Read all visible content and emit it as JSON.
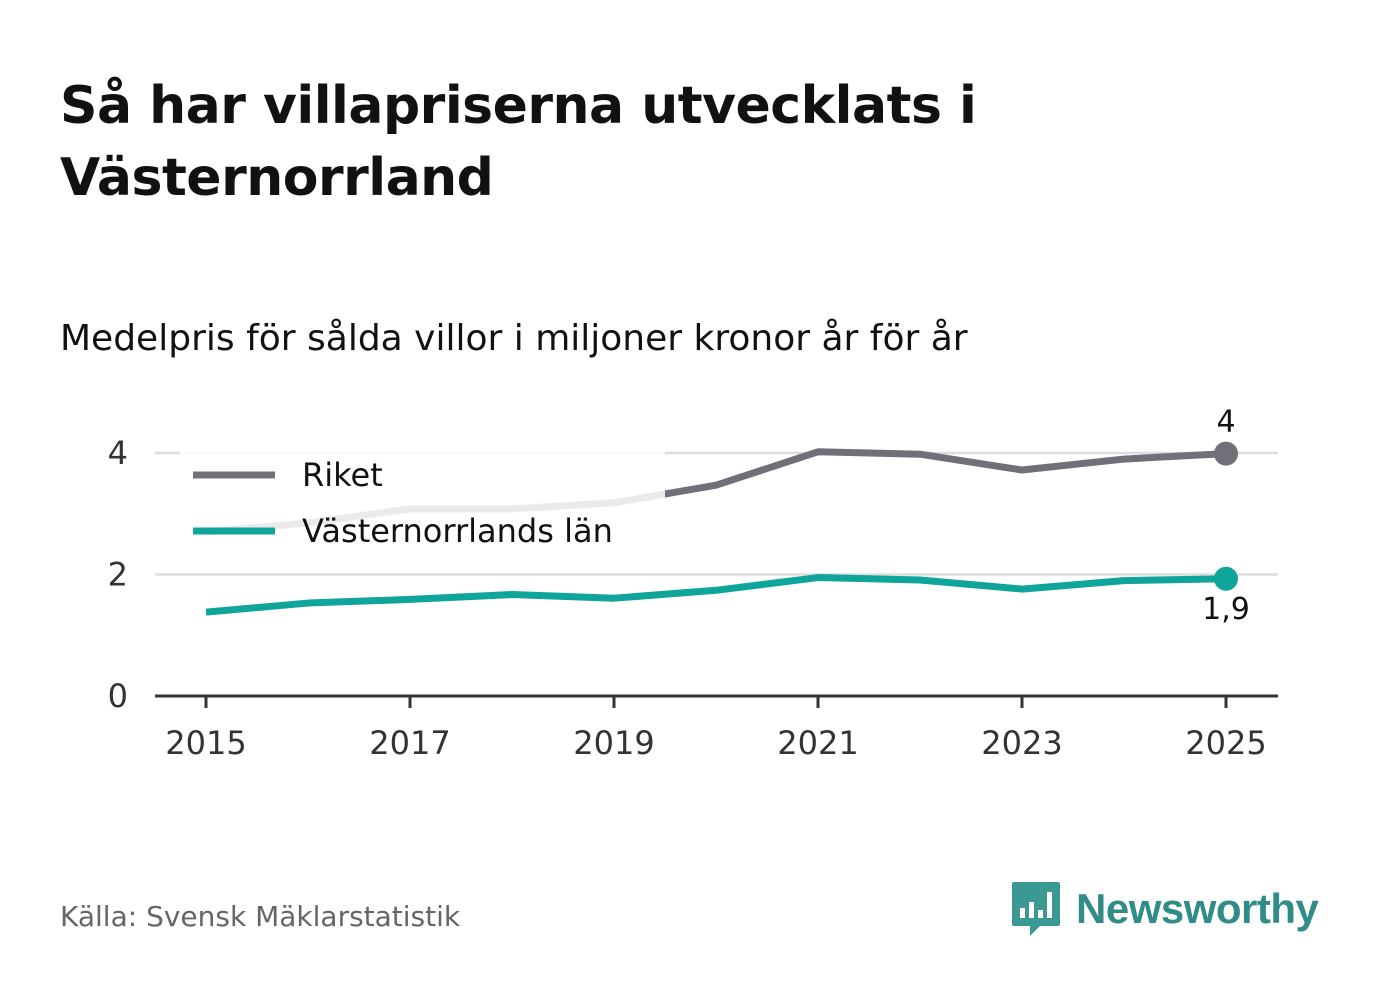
{
  "header": {
    "title": "Så har villapriserna utvecklats i Västernorrland",
    "subtitle": "Medelpris för sålda villor i miljoner kronor år för år"
  },
  "footer": {
    "source": "Källa: Svensk Mäklarstatistik",
    "brand": "Newsworthy"
  },
  "colors": {
    "riket": "#707078",
    "lan": "#10a59a",
    "grid": "#dddddd",
    "axis": "#333333",
    "brand": "#2f8c86"
  },
  "chart_data": {
    "type": "line",
    "title": "Medelpris för sålda villor i miljoner kronor år för år",
    "xlabel": "",
    "ylabel": "",
    "x": [
      2015,
      2016,
      2017,
      2018,
      2019,
      2020,
      2021,
      2022,
      2023,
      2024,
      2025
    ],
    "x_ticks": [
      "2015",
      "2017",
      "2019",
      "2021",
      "2023",
      "2025"
    ],
    "y_ticks": [
      "0",
      "2",
      "4"
    ],
    "xlim": [
      2014.5,
      2025.5
    ],
    "ylim": [
      0,
      4.5
    ],
    "grid": true,
    "legend_position": "top-left",
    "series": [
      {
        "name": "Riket",
        "color": "#707078",
        "values": [
          2.7,
          2.85,
          3.08,
          3.08,
          3.18,
          3.47,
          4.02,
          3.98,
          3.72,
          3.9,
          3.99
        ],
        "end_label": "4"
      },
      {
        "name": "Västernorrlands län",
        "color": "#10a59a",
        "values": [
          1.38,
          1.53,
          1.59,
          1.67,
          1.61,
          1.74,
          1.95,
          1.91,
          1.76,
          1.9,
          1.93
        ],
        "end_label": "1,9"
      }
    ]
  }
}
